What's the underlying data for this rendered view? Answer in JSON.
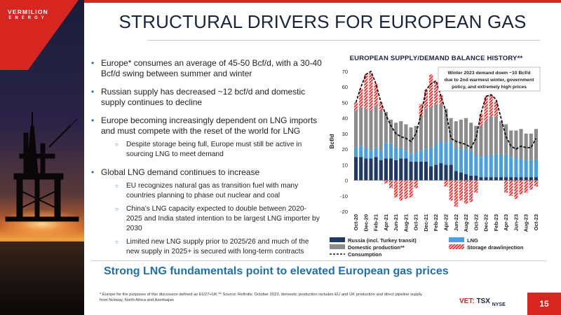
{
  "brand": {
    "name": "VERMILION",
    "sub": "ENERGY",
    "accent": "#d6261f",
    "navy": "#1c2340",
    "blue": "#1f6fb4"
  },
  "title": "STRUCTURAL DRIVERS FOR EUROPEAN GAS",
  "bullets": [
    {
      "text": "Europe* consumes an average of 45-50 Bcf/d, with a 30-40 Bcf/d swing between summer and winter",
      "subs": []
    },
    {
      "text": "Russian supply has decreased ~12 bcf/d and domestic supply continues to decline",
      "subs": []
    },
    {
      "text": "Europe becoming increasingly dependent on LNG imports and must compete with the reset of the world for LNG",
      "subs": [
        "Despite storage being full, Europe must still be active in sourcing LNG to meet demand"
      ]
    },
    {
      "text": "Global LNG demand continues to increase",
      "subs": [
        "EU recognizes natural gas as transition fuel with many countries planning to phase out nuclear and coal",
        "China’s LNG capacity expected to double between 2020- 2025 and India stated intention to be largest LNG importer by 2030",
        "Limited new LNG supply prior to 2025/26 and much of the new supply in 2025+ is secured with long-term contracts"
      ]
    }
  ],
  "takeaway": "Strong LNG fundamentals point to elevated European gas prices",
  "footnote": "* Europe for the purposes of this discussion defined as EU27+UK ** Source: Refinitiv, October 2023, domestic production includes EU and UK production and direct pipeline supply from Norway, North Africa and Azerbaijan",
  "exchange": {
    "prefix": "VET:",
    "tsx": "TSX",
    "nyse": "NYSE"
  },
  "page_number": "15",
  "chart_data": {
    "type": "bar",
    "stacked": true,
    "title": "EUROPEAN SUPPLY/DEMAND BALANCE HISTORY**",
    "ylabel": "Bcf/d",
    "ylim": [
      -20,
      70
    ],
    "yticks": [
      -20,
      -10,
      0,
      10,
      20,
      30,
      40,
      50,
      60,
      70
    ],
    "grid": false,
    "legend_position": "bottom",
    "annotation": {
      "lines": [
        "Winter 2023 demand down ~10 Bcf/d",
        "due to 2nd warmest winter, government",
        "policy, and extremely high prices"
      ]
    },
    "x_tick_labels": [
      "Oct-20",
      "Dec-20",
      "Feb-21",
      "Apr-21",
      "Jun-21",
      "Aug-21",
      "Oct-21",
      "Dec-21",
      "Feb-22",
      "Apr-22",
      "Jun-22",
      "Aug-22",
      "Oct-22",
      "Dec-22",
      "Feb-23",
      "Apr-23",
      "Jun-23",
      "Aug-23",
      "Oct-23"
    ],
    "categories": [
      "Oct-20",
      "Nov-20",
      "Dec-20",
      "Jan-21",
      "Feb-21",
      "Mar-21",
      "Apr-21",
      "May-21",
      "Jun-21",
      "Jul-21",
      "Aug-21",
      "Sep-21",
      "Oct-21",
      "Nov-21",
      "Dec-21",
      "Jan-22",
      "Feb-22",
      "Mar-22",
      "Apr-22",
      "May-22",
      "Jun-22",
      "Jul-22",
      "Aug-22",
      "Sep-22",
      "Oct-22",
      "Nov-22",
      "Dec-22",
      "Jan-23",
      "Feb-23",
      "Mar-23",
      "Apr-23",
      "May-23",
      "Jun-23",
      "Jul-23",
      "Aug-23",
      "Sep-23",
      "Oct-23"
    ],
    "series": [
      {
        "name": "Russia (incl. Turkey transit)",
        "color": "#1f3864",
        "kind": "bar",
        "values": [
          15,
          15,
          14,
          14,
          15,
          13,
          14,
          14,
          13,
          14,
          14,
          12,
          12,
          12,
          12,
          9,
          10,
          11,
          10,
          10,
          6,
          5,
          4,
          3,
          3,
          2,
          2,
          2,
          2,
          2,
          2,
          2,
          2,
          2,
          2,
          2,
          2
        ]
      },
      {
        "name": "LNG",
        "color": "#4a9fe0",
        "kind": "bar",
        "values": [
          6,
          7,
          7,
          5,
          6,
          6,
          10,
          10,
          8,
          7,
          5,
          5,
          6,
          7,
          8,
          12,
          13,
          14,
          14,
          15,
          15,
          15,
          16,
          16,
          13,
          13,
          14,
          14,
          15,
          14,
          15,
          13,
          12,
          12,
          11,
          11,
          11
        ]
      },
      {
        "name": "Domestic production**",
        "color": "#8c8c8c",
        "kind": "bar",
        "values": [
          24,
          25,
          25,
          26,
          27,
          26,
          20,
          15,
          16,
          17,
          17,
          17,
          17,
          22,
          26,
          26,
          26,
          24,
          22,
          15,
          17,
          19,
          20,
          18,
          19,
          20,
          22,
          25,
          24,
          22,
          19,
          17,
          18,
          19,
          17,
          17,
          20
        ]
      },
      {
        "name": "Storage draw/injection",
        "color": "#ff2020",
        "kind": "bar_hatched",
        "values": [
          5,
          12,
          22,
          24,
          14,
          5,
          -2,
          -5,
          -11,
          -13,
          -12,
          -11,
          -5,
          8,
          12,
          21,
          14,
          6,
          -4,
          -13,
          -17,
          -13,
          -15,
          -14,
          -8,
          8,
          16,
          14,
          10,
          0,
          -8,
          -10,
          -12,
          -9,
          -8,
          -6,
          -4
        ]
      },
      {
        "name": "Consumption",
        "color": "#111111",
        "kind": "dashed_line",
        "values": [
          50,
          60,
          68,
          70,
          62,
          50,
          42,
          35,
          30,
          28,
          27,
          25,
          30,
          42,
          58,
          62,
          64,
          54,
          44,
          27,
          25,
          24,
          23,
          21,
          27,
          43,
          54,
          55,
          52,
          40,
          28,
          22,
          20,
          22,
          21,
          21,
          27
        ]
      }
    ]
  }
}
